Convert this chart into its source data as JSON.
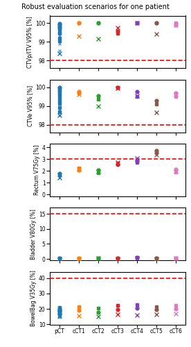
{
  "title": "Robust evaluation scenarios for one patient",
  "x_labels": [
    "pCT",
    "cCT1",
    "cCT2",
    "cCT3",
    "cCT4",
    "cCT5",
    "cCT6"
  ],
  "x_positions": [
    0,
    1,
    2,
    3,
    4,
    5,
    6
  ],
  "colors": [
    "#1f77b4",
    "#ff7f0e",
    "#2ca02c",
    "#d62728",
    "#7f3fbf",
    "#8c564b",
    "#e377c2"
  ],
  "subplots": [
    {
      "ylabel": "CTVp/ITV V95% [%]",
      "constraint": 98,
      "ylim": [
        97.6,
        100.4
      ],
      "yticks": [
        98,
        99,
        100
      ],
      "data": {
        "dot": [
          99.97,
          100.0,
          100.0,
          99.55,
          100.0,
          100.0,
          99.9
        ],
        "cross": [
          98.4,
          99.3,
          99.15,
          99.75,
          100.0,
          99.42,
          99.9
        ],
        "square": [
          99.85,
          100.0,
          100.0,
          99.45,
          100.0,
          100.0,
          100.0
        ]
      },
      "pct_extra": {
        "dots": [
          99.9,
          99.85,
          99.8,
          99.75,
          99.7,
          99.65,
          99.5,
          99.45,
          99.2,
          99.05
        ],
        "crosses": [
          99.8,
          99.75,
          99.6,
          99.5,
          99.35,
          99.2,
          99.05,
          98.9,
          98.55
        ]
      }
    },
    {
      "ylabel": "CTVe V95% [%]",
      "constraint": 98,
      "ylim": [
        97.6,
        100.4
      ],
      "yticks": [
        98,
        99,
        100
      ],
      "data": {
        "dot": [
          100.0,
          99.75,
          99.55,
          100.0,
          99.75,
          99.3,
          99.7
        ],
        "cross": [
          98.5,
          99.6,
          99.0,
          99.95,
          99.55,
          98.65,
          99.6
        ],
        "square": [
          99.85,
          99.7,
          99.35,
          100.0,
          99.5,
          99.1,
          99.5
        ]
      },
      "pct_extra": {
        "dots": [
          99.9,
          99.8,
          99.7,
          99.6,
          99.5,
          99.35,
          99.25,
          99.15,
          98.9,
          98.7
        ],
        "crosses": [
          99.7,
          99.55,
          99.4,
          99.25,
          99.1,
          98.95,
          98.8,
          98.65,
          98.5
        ]
      }
    },
    {
      "ylabel": "Rectum V75Gy [%]",
      "constraint": 3,
      "ylim": [
        -0.15,
        4.3
      ],
      "yticks": [
        0,
        1,
        2,
        3,
        4
      ],
      "data": {
        "dot": [
          1.8,
          2.05,
          2.1,
          2.55,
          2.85,
          3.7,
          2.15
        ],
        "cross": [
          1.45,
          2.15,
          1.95,
          2.75,
          3.05,
          3.35,
          1.95
        ],
        "square": [
          1.65,
          2.25,
          1.85,
          2.65,
          2.75,
          3.55,
          1.9
        ]
      }
    },
    {
      "ylabel": "Bladder V80Gy [%]",
      "constraint": 15,
      "ylim": [
        -0.5,
        17
      ],
      "yticks": [
        0,
        5,
        10,
        15
      ],
      "data": {
        "dot": [
          0.15,
          0.18,
          0.22,
          0.2,
          0.35,
          0.2,
          0.25
        ],
        "cross": [
          0.05,
          0.1,
          0.12,
          0.1,
          0.2,
          0.1,
          0.15
        ],
        "square": [
          0.2,
          0.22,
          0.28,
          0.25,
          0.45,
          0.25,
          0.32
        ]
      }
    },
    {
      "ylabel": "BowelBag V35Gy [%]",
      "constraint": 40,
      "ylim": [
        10,
        44
      ],
      "yticks": [
        10,
        20,
        30,
        40
      ],
      "data": {
        "dot": [
          19.0,
          19.0,
          18.0,
          19.5,
          20.5,
          19.5,
          20.0
        ],
        "cross": [
          15.5,
          15.5,
          15.0,
          16.5,
          16.0,
          16.5,
          17.0
        ],
        "square": [
          21.0,
          21.5,
          20.5,
          22.5,
          23.0,
          21.5,
          22.5
        ]
      },
      "pct_extra": {
        "dots": [
          20.5,
          19.8,
          19.5,
          19.0,
          18.5,
          18.2,
          17.8,
          17.3,
          16.8,
          16.5
        ],
        "crosses": [
          16.8,
          16.5,
          16.0,
          15.8,
          15.5,
          15.2,
          14.9
        ]
      }
    }
  ]
}
